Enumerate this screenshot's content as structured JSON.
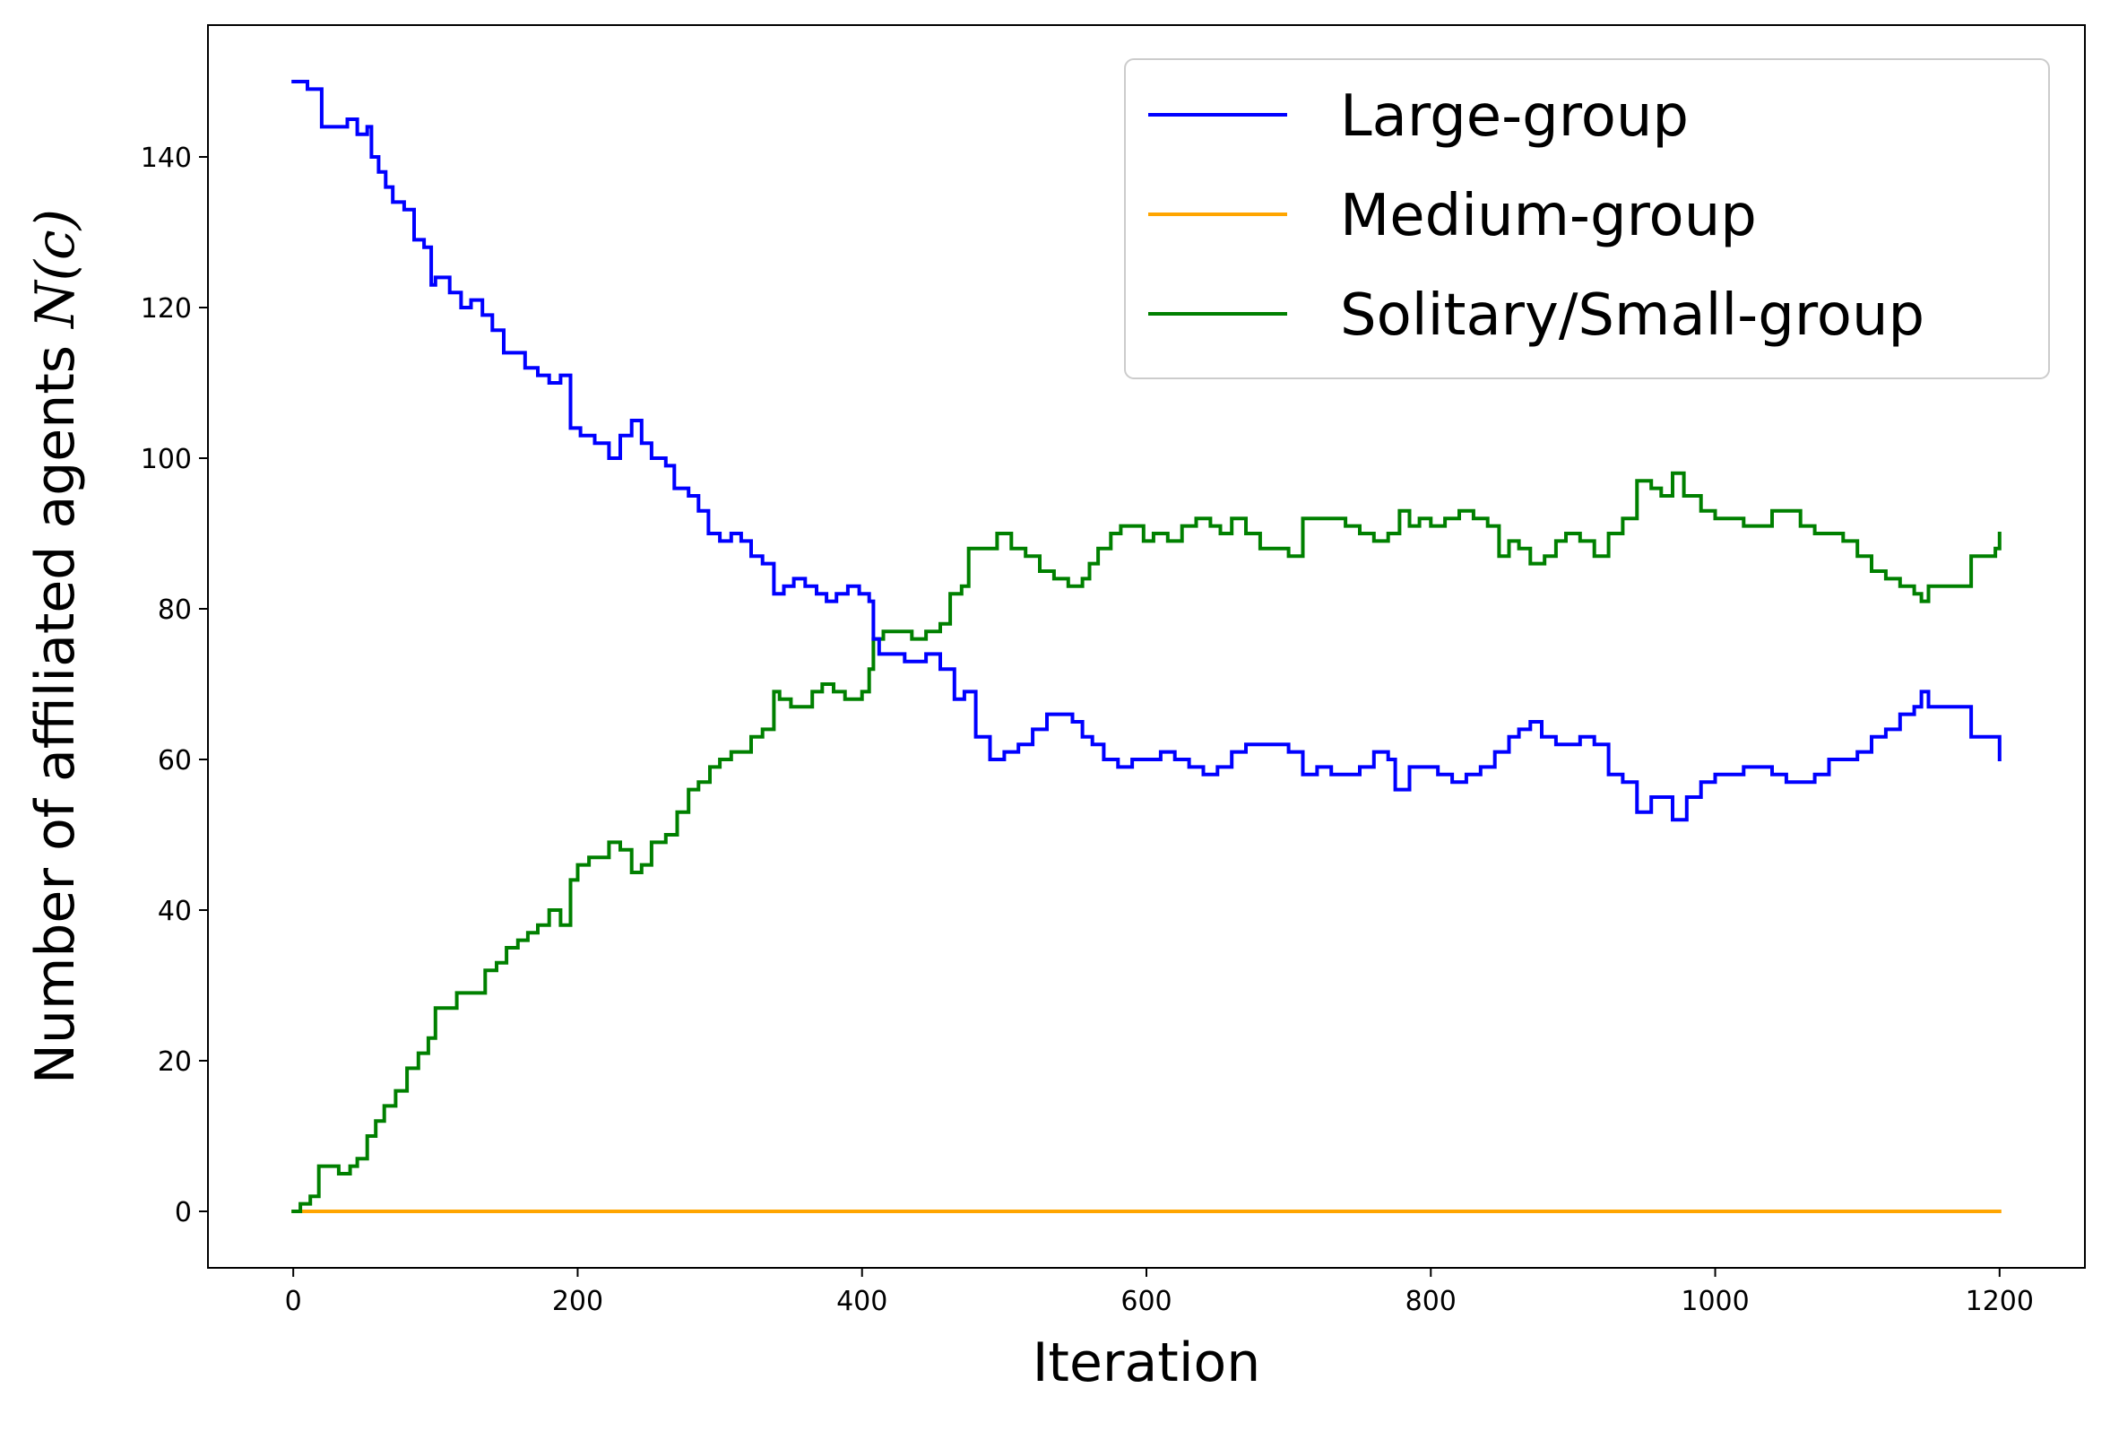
{
  "chart_data": {
    "type": "line",
    "title": "",
    "xlabel": "Iteration",
    "ylabel": "Number of affiliated agents N(c)",
    "ylabel_main": "Number of affiliated agents ",
    "ylabel_math": "N(c)",
    "xlim": [
      -60,
      1260
    ],
    "ylim": [
      -7.5,
      157.5
    ],
    "xticks": [
      0,
      200,
      400,
      600,
      800,
      1000,
      1200
    ],
    "yticks": [
      0,
      20,
      40,
      60,
      80,
      100,
      120,
      140
    ],
    "grid": false,
    "legend": "top-right",
    "series": [
      {
        "name": "Large-group",
        "color": "#0000ff",
        "points": [
          [
            0,
            150
          ],
          [
            10,
            149
          ],
          [
            20,
            144
          ],
          [
            30,
            144
          ],
          [
            38,
            145
          ],
          [
            45,
            143
          ],
          [
            52,
            144
          ],
          [
            55,
            140
          ],
          [
            60,
            138
          ],
          [
            65,
            136
          ],
          [
            70,
            134
          ],
          [
            78,
            133
          ],
          [
            85,
            129
          ],
          [
            92,
            128
          ],
          [
            97,
            123
          ],
          [
            100,
            124
          ],
          [
            110,
            122
          ],
          [
            118,
            120
          ],
          [
            125,
            121
          ],
          [
            133,
            119
          ],
          [
            140,
            117
          ],
          [
            148,
            114
          ],
          [
            155,
            114
          ],
          [
            163,
            112
          ],
          [
            172,
            111
          ],
          [
            180,
            110
          ],
          [
            188,
            111
          ],
          [
            195,
            104
          ],
          [
            202,
            103
          ],
          [
            212,
            102
          ],
          [
            222,
            100
          ],
          [
            230,
            103
          ],
          [
            238,
            105
          ],
          [
            245,
            102
          ],
          [
            252,
            100
          ],
          [
            262,
            99
          ],
          [
            268,
            96
          ],
          [
            278,
            95
          ],
          [
            285,
            93
          ],
          [
            292,
            90
          ],
          [
            300,
            89
          ],
          [
            308,
            90
          ],
          [
            315,
            89
          ],
          [
            322,
            87
          ],
          [
            330,
            86
          ],
          [
            338,
            82
          ],
          [
            345,
            83
          ],
          [
            352,
            84
          ],
          [
            360,
            83
          ],
          [
            368,
            82
          ],
          [
            375,
            81
          ],
          [
            382,
            82
          ],
          [
            390,
            83
          ],
          [
            398,
            82
          ],
          [
            405,
            81
          ],
          [
            408,
            76
          ],
          [
            412,
            74
          ],
          [
            420,
            74
          ],
          [
            430,
            73
          ],
          [
            445,
            74
          ],
          [
            455,
            72
          ],
          [
            465,
            68
          ],
          [
            472,
            69
          ],
          [
            480,
            63
          ],
          [
            490,
            60
          ],
          [
            500,
            61
          ],
          [
            510,
            62
          ],
          [
            520,
            64
          ],
          [
            530,
            66
          ],
          [
            540,
            66
          ],
          [
            548,
            65
          ],
          [
            555,
            63
          ],
          [
            562,
            62
          ],
          [
            570,
            60
          ],
          [
            580,
            59
          ],
          [
            590,
            60
          ],
          [
            600,
            60
          ],
          [
            610,
            61
          ],
          [
            620,
            60
          ],
          [
            630,
            59
          ],
          [
            640,
            58
          ],
          [
            650,
            59
          ],
          [
            660,
            61
          ],
          [
            670,
            62
          ],
          [
            680,
            62
          ],
          [
            690,
            62
          ],
          [
            700,
            61
          ],
          [
            710,
            58
          ],
          [
            720,
            59
          ],
          [
            730,
            58
          ],
          [
            740,
            58
          ],
          [
            750,
            59
          ],
          [
            760,
            61
          ],
          [
            770,
            60
          ],
          [
            775,
            56
          ],
          [
            785,
            59
          ],
          [
            795,
            59
          ],
          [
            805,
            58
          ],
          [
            815,
            57
          ],
          [
            825,
            58
          ],
          [
            835,
            59
          ],
          [
            845,
            61
          ],
          [
            855,
            63
          ],
          [
            862,
            64
          ],
          [
            870,
            65
          ],
          [
            878,
            63
          ],
          [
            888,
            62
          ],
          [
            895,
            62
          ],
          [
            905,
            63
          ],
          [
            915,
            62
          ],
          [
            925,
            58
          ],
          [
            935,
            57
          ],
          [
            945,
            53
          ],
          [
            955,
            55
          ],
          [
            965,
            55
          ],
          [
            970,
            52
          ],
          [
            980,
            55
          ],
          [
            990,
            57
          ],
          [
            1000,
            58
          ],
          [
            1010,
            58
          ],
          [
            1020,
            59
          ],
          [
            1030,
            59
          ],
          [
            1040,
            58
          ],
          [
            1050,
            57
          ],
          [
            1060,
            57
          ],
          [
            1070,
            58
          ],
          [
            1080,
            60
          ],
          [
            1090,
            60
          ],
          [
            1100,
            61
          ],
          [
            1110,
            63
          ],
          [
            1120,
            64
          ],
          [
            1130,
            66
          ],
          [
            1140,
            67
          ],
          [
            1145,
            69
          ],
          [
            1150,
            67
          ],
          [
            1160,
            67
          ],
          [
            1170,
            67
          ],
          [
            1180,
            63
          ],
          [
            1190,
            63
          ],
          [
            1200,
            60
          ]
        ]
      },
      {
        "name": "Medium-group",
        "color": "#ffa500",
        "points": [
          [
            0,
            0
          ],
          [
            1200,
            0
          ]
        ]
      },
      {
        "name": "Solitary/Small-group",
        "color": "#008000",
        "points": [
          [
            0,
            0
          ],
          [
            5,
            1
          ],
          [
            12,
            2
          ],
          [
            18,
            6
          ],
          [
            25,
            6
          ],
          [
            32,
            5
          ],
          [
            40,
            6
          ],
          [
            45,
            7
          ],
          [
            52,
            10
          ],
          [
            58,
            12
          ],
          [
            64,
            14
          ],
          [
            72,
            16
          ],
          [
            80,
            19
          ],
          [
            88,
            21
          ],
          [
            95,
            23
          ],
          [
            100,
            27
          ],
          [
            108,
            27
          ],
          [
            115,
            29
          ],
          [
            125,
            29
          ],
          [
            135,
            32
          ],
          [
            143,
            33
          ],
          [
            150,
            35
          ],
          [
            158,
            36
          ],
          [
            165,
            37
          ],
          [
            172,
            38
          ],
          [
            180,
            40
          ],
          [
            188,
            38
          ],
          [
            195,
            44
          ],
          [
            200,
            46
          ],
          [
            208,
            47
          ],
          [
            215,
            47
          ],
          [
            222,
            49
          ],
          [
            230,
            48
          ],
          [
            238,
            45
          ],
          [
            245,
            46
          ],
          [
            252,
            49
          ],
          [
            262,
            50
          ],
          [
            270,
            53
          ],
          [
            278,
            56
          ],
          [
            285,
            57
          ],
          [
            293,
            59
          ],
          [
            300,
            60
          ],
          [
            308,
            61
          ],
          [
            315,
            61
          ],
          [
            322,
            63
          ],
          [
            330,
            64
          ],
          [
            338,
            69
          ],
          [
            342,
            68
          ],
          [
            350,
            67
          ],
          [
            358,
            67
          ],
          [
            365,
            69
          ],
          [
            372,
            70
          ],
          [
            380,
            69
          ],
          [
            388,
            68
          ],
          [
            395,
            68
          ],
          [
            400,
            69
          ],
          [
            405,
            72
          ],
          [
            408,
            76
          ],
          [
            415,
            77
          ],
          [
            425,
            77
          ],
          [
            435,
            76
          ],
          [
            445,
            77
          ],
          [
            455,
            78
          ],
          [
            462,
            82
          ],
          [
            470,
            83
          ],
          [
            475,
            88
          ],
          [
            485,
            88
          ],
          [
            495,
            90
          ],
          [
            505,
            88
          ],
          [
            515,
            87
          ],
          [
            525,
            85
          ],
          [
            535,
            84
          ],
          [
            545,
            83
          ],
          [
            555,
            84
          ],
          [
            560,
            86
          ],
          [
            566,
            88
          ],
          [
            575,
            90
          ],
          [
            582,
            91
          ],
          [
            590,
            91
          ],
          [
            598,
            89
          ],
          [
            605,
            90
          ],
          [
            615,
            89
          ],
          [
            625,
            91
          ],
          [
            635,
            92
          ],
          [
            645,
            91
          ],
          [
            652,
            90
          ],
          [
            660,
            92
          ],
          [
            670,
            90
          ],
          [
            680,
            88
          ],
          [
            690,
            88
          ],
          [
            700,
            87
          ],
          [
            710,
            92
          ],
          [
            720,
            92
          ],
          [
            730,
            92
          ],
          [
            740,
            91
          ],
          [
            750,
            90
          ],
          [
            760,
            89
          ],
          [
            770,
            90
          ],
          [
            778,
            93
          ],
          [
            785,
            91
          ],
          [
            792,
            92
          ],
          [
            800,
            91
          ],
          [
            810,
            92
          ],
          [
            820,
            93
          ],
          [
            830,
            92
          ],
          [
            840,
            91
          ],
          [
            848,
            87
          ],
          [
            855,
            89
          ],
          [
            862,
            88
          ],
          [
            870,
            86
          ],
          [
            880,
            87
          ],
          [
            888,
            89
          ],
          [
            895,
            90
          ],
          [
            905,
            89
          ],
          [
            915,
            87
          ],
          [
            925,
            90
          ],
          [
            935,
            92
          ],
          [
            945,
            97
          ],
          [
            955,
            96
          ],
          [
            962,
            95
          ],
          [
            970,
            98
          ],
          [
            978,
            95
          ],
          [
            990,
            93
          ],
          [
            1000,
            92
          ],
          [
            1010,
            92
          ],
          [
            1020,
            91
          ],
          [
            1030,
            91
          ],
          [
            1040,
            93
          ],
          [
            1050,
            93
          ],
          [
            1060,
            91
          ],
          [
            1070,
            90
          ],
          [
            1080,
            90
          ],
          [
            1090,
            89
          ],
          [
            1100,
            87
          ],
          [
            1110,
            85
          ],
          [
            1120,
            84
          ],
          [
            1130,
            83
          ],
          [
            1140,
            82
          ],
          [
            1145,
            81
          ],
          [
            1150,
            83
          ],
          [
            1160,
            83
          ],
          [
            1170,
            83
          ],
          [
            1180,
            87
          ],
          [
            1190,
            87
          ],
          [
            1197,
            88
          ],
          [
            1200,
            90
          ]
        ]
      }
    ]
  }
}
